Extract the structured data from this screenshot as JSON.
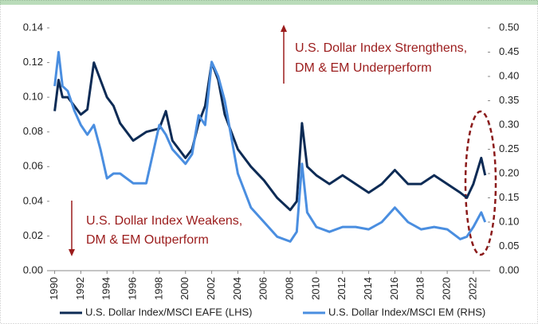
{
  "chart_data": {
    "type": "line",
    "x": [
      1990,
      1990.3,
      1990.6,
      1991,
      1991.5,
      1992,
      1992.5,
      1993,
      1993.5,
      1994,
      1994.5,
      1995,
      1996,
      1997,
      1998,
      1998.5,
      1999,
      2000,
      2000.5,
      2001,
      2001.5,
      2002,
      2002.5,
      2003,
      2004,
      2005,
      2006,
      2007,
      2008,
      2008.5,
      2008.9,
      2009.3,
      2010,
      2011,
      2012,
      2013,
      2014,
      2015,
      2016,
      2017,
      2018,
      2019,
      2020,
      2021,
      2021.5,
      2022,
      2022.6,
      2022.9
    ],
    "series": [
      {
        "name": "U.S. Dollar Index/MSCI EAFE (LHS)",
        "color": "#0d2b55",
        "axis": "y",
        "values": [
          0.092,
          0.11,
          0.1,
          0.1,
          0.095,
          0.09,
          0.093,
          0.12,
          0.11,
          0.1,
          0.095,
          0.085,
          0.075,
          0.08,
          0.082,
          0.092,
          0.075,
          0.065,
          0.07,
          0.085,
          0.095,
          0.12,
          0.11,
          0.09,
          0.07,
          0.06,
          0.052,
          0.042,
          0.035,
          0.04,
          0.085,
          0.06,
          0.055,
          0.05,
          0.055,
          0.05,
          0.045,
          0.05,
          0.058,
          0.05,
          0.05,
          0.055,
          0.05,
          0.045,
          0.042,
          0.05,
          0.065,
          0.055
        ]
      },
      {
        "name": "U.S. Dollar Index/MSCI EM (RHS)",
        "color": "#4a8ee0",
        "axis": "y2",
        "values": [
          0.38,
          0.45,
          0.38,
          0.37,
          0.33,
          0.3,
          0.28,
          0.3,
          0.25,
          0.19,
          0.2,
          0.2,
          0.18,
          0.18,
          0.3,
          0.28,
          0.25,
          0.22,
          0.24,
          0.32,
          0.3,
          0.43,
          0.4,
          0.35,
          0.2,
          0.13,
          0.1,
          0.07,
          0.06,
          0.08,
          0.22,
          0.12,
          0.09,
          0.08,
          0.09,
          0.09,
          0.085,
          0.1,
          0.13,
          0.1,
          0.085,
          0.09,
          0.085,
          0.065,
          0.07,
          0.09,
          0.12,
          0.1
        ]
      }
    ],
    "xlim": [
      1989.6,
      2023.1
    ],
    "xticks": [
      1990,
      1992,
      1994,
      1996,
      1998,
      2000,
      2002,
      2004,
      2006,
      2008,
      2010,
      2012,
      2014,
      2016,
      2018,
      2020,
      2022
    ],
    "ylim": [
      0,
      0.14
    ],
    "yticks": [
      {
        "value": 0,
        "label": "0.00"
      },
      {
        "value": 0.02,
        "label": "0.02"
      },
      {
        "value": 0.04,
        "label": "0.04"
      },
      {
        "value": 0.06,
        "label": "0.06"
      },
      {
        "value": 0.08,
        "label": "0.08"
      },
      {
        "value": 0.1,
        "label": "0.10"
      },
      {
        "value": 0.12,
        "label": "0.12"
      },
      {
        "value": 0.14,
        "label": "0.14"
      }
    ],
    "y2lim": [
      0,
      0.5
    ],
    "y2ticks": [
      {
        "value": 0,
        "label": "0.00"
      },
      {
        "value": 0.05,
        "label": "0.05"
      },
      {
        "value": 0.1,
        "label": "0.10"
      },
      {
        "value": 0.15,
        "label": "0.15"
      },
      {
        "value": 0.2,
        "label": "0.20"
      },
      {
        "value": 0.25,
        "label": "0.25"
      },
      {
        "value": 0.3,
        "label": "0.30"
      },
      {
        "value": 0.35,
        "label": "0.35"
      },
      {
        "value": 0.4,
        "label": "0.40"
      },
      {
        "value": 0.45,
        "label": "0.45"
      },
      {
        "value": 0.5,
        "label": "0.50"
      }
    ],
    "annotations": [
      "U.S. Dollar Index Strengthens,",
      "DM & EM Underperform",
      "U.S. Dollar Index Weakens,",
      "DM & EM Outperform"
    ]
  }
}
